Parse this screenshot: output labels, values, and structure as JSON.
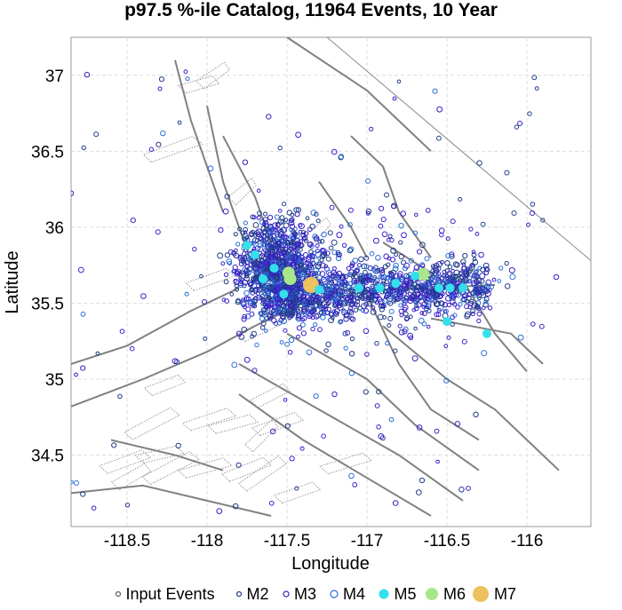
{
  "chart_data": {
    "type": "scatter",
    "title": "p97.5 %-ile Catalog, 11964 Events, 10 Year",
    "xlabel": "Longitude",
    "ylabel": "Latitude",
    "xlim": [
      -118.85,
      -115.6
    ],
    "ylim": [
      34.03,
      37.25
    ],
    "x_ticks": [
      -118.5,
      -118,
      -117.5,
      -117,
      -116.5,
      -116
    ],
    "y_ticks": [
      34.5,
      35,
      35.5,
      36,
      36.5,
      37
    ],
    "x_tick_labels": [
      "-118.5",
      "-118",
      "-117.5",
      "-117",
      "-116.5",
      "-116"
    ],
    "y_tick_labels": [
      "34.5",
      "35",
      "35.5",
      "36",
      "36.5",
      "37"
    ],
    "grid": true,
    "legend_position": "bottom",
    "legend": [
      {
        "key": "input",
        "label": "Input Events"
      },
      {
        "key": "m2",
        "label": "M2"
      },
      {
        "key": "m3",
        "label": "M3"
      },
      {
        "key": "m4",
        "label": "M4"
      },
      {
        "key": "m5",
        "label": "M5"
      },
      {
        "key": "m6",
        "label": "M6"
      },
      {
        "key": "m7",
        "label": "M7"
      }
    ],
    "colors": {
      "input": "#606060",
      "m2": "#1f3c88",
      "m3": "#3a1fc8",
      "m4": "#2a6fd6",
      "m5": "#33e0ec",
      "m6": "#a8e68a",
      "m7": "#ecc15e",
      "fault": "#808080"
    },
    "large_events": [
      {
        "lon": -117.35,
        "lat": 35.62,
        "mag": "M7"
      },
      {
        "lon": -117.48,
        "lat": 35.66,
        "mag": "M6"
      },
      {
        "lon": -117.49,
        "lat": 35.7,
        "mag": "M6"
      },
      {
        "lon": -116.65,
        "lat": 35.69,
        "mag": "M6"
      },
      {
        "lon": -117.65,
        "lat": 35.66,
        "mag": "M5"
      },
      {
        "lon": -117.58,
        "lat": 35.73,
        "mag": "M5"
      },
      {
        "lon": -117.7,
        "lat": 35.82,
        "mag": "M5"
      },
      {
        "lon": -117.75,
        "lat": 35.88,
        "mag": "M5"
      },
      {
        "lon": -117.52,
        "lat": 35.56,
        "mag": "M5"
      },
      {
        "lon": -117.05,
        "lat": 35.6,
        "mag": "M5"
      },
      {
        "lon": -116.92,
        "lat": 35.6,
        "mag": "M5"
      },
      {
        "lon": -116.82,
        "lat": 35.63,
        "mag": "M5"
      },
      {
        "lon": -116.7,
        "lat": 35.68,
        "mag": "M5"
      },
      {
        "lon": -116.55,
        "lat": 35.6,
        "mag": "M5"
      },
      {
        "lon": -116.48,
        "lat": 35.6,
        "mag": "M5"
      },
      {
        "lon": -116.4,
        "lat": 35.6,
        "mag": "M5"
      },
      {
        "lon": -116.5,
        "lat": 35.38,
        "mag": "M5"
      },
      {
        "lon": -116.25,
        "lat": 35.3,
        "mag": "M5"
      },
      {
        "lon": -117.3,
        "lat": 35.59,
        "mag": "M5"
      }
    ]
  }
}
